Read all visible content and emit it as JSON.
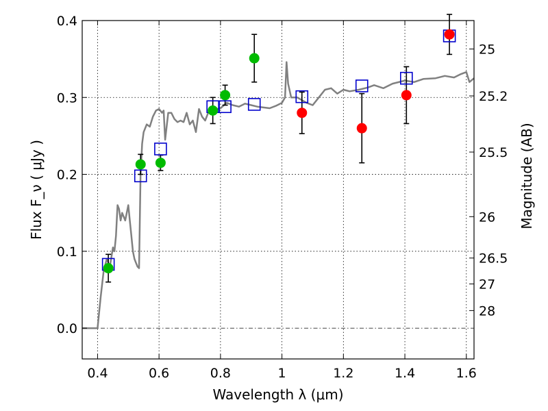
{
  "chart_data": {
    "type": "scatter",
    "title": "",
    "xlabel": "Wavelength  λ (μm)",
    "ylabel": "Flux  F_ν  ( μJy )",
    "y2label": "Magnitude (AB)",
    "xlim": [
      0.35,
      1.625
    ],
    "ylim": [
      -0.04,
      0.4
    ],
    "grid": true,
    "x_ticks": [
      0.4,
      0.6,
      0.8,
      1.0,
      1.2,
      1.4,
      1.6
    ],
    "x_tick_labels": [
      "0.4",
      "0.6",
      "0.8",
      "1",
      "1.2",
      "1.4",
      "1.6"
    ],
    "y_ticks": [
      0.0,
      0.1,
      0.2,
      0.3,
      0.4
    ],
    "y_tick_labels": [
      "0.0",
      "0.1",
      "0.2",
      "0.3",
      "0.4"
    ],
    "y2_ticks": [
      {
        "label": "25",
        "flux": 0.363
      },
      {
        "label": "25.2",
        "flux": 0.302
      },
      {
        "label": "25.5",
        "flux": 0.229
      },
      {
        "label": "26",
        "flux": 0.145
      },
      {
        "label": "26.5",
        "flux": 0.0912
      },
      {
        "label": "27",
        "flux": 0.0575
      },
      {
        "label": "28",
        "flux": 0.0229
      }
    ],
    "series": [
      {
        "name": "model_spectrum",
        "kind": "line",
        "color": "#808080",
        "x": [
          0.35,
          0.4,
          0.41,
          0.42,
          0.43,
          0.44,
          0.45,
          0.455,
          0.46,
          0.465,
          0.47,
          0.475,
          0.48,
          0.49,
          0.5,
          0.505,
          0.51,
          0.515,
          0.52,
          0.525,
          0.53,
          0.535,
          0.54,
          0.545,
          0.55,
          0.56,
          0.57,
          0.58,
          0.59,
          0.6,
          0.61,
          0.615,
          0.62,
          0.63,
          0.64,
          0.65,
          0.66,
          0.67,
          0.68,
          0.69,
          0.7,
          0.71,
          0.72,
          0.73,
          0.74,
          0.75,
          0.76,
          0.77,
          0.78,
          0.79,
          0.8,
          0.82,
          0.84,
          0.86,
          0.88,
          0.9,
          0.92,
          0.94,
          0.96,
          0.98,
          1.0,
          1.01,
          1.015,
          1.02,
          1.03,
          1.05,
          1.08,
          1.1,
          1.12,
          1.14,
          1.16,
          1.18,
          1.2,
          1.22,
          1.25,
          1.28,
          1.3,
          1.33,
          1.36,
          1.4,
          1.43,
          1.46,
          1.5,
          1.53,
          1.56,
          1.58,
          1.6,
          1.61,
          1.625
        ],
        "y": [
          0.0,
          0.0,
          0.04,
          0.075,
          0.09,
          0.08,
          0.105,
          0.1,
          0.12,
          0.16,
          0.155,
          0.14,
          0.15,
          0.14,
          0.16,
          0.14,
          0.12,
          0.1,
          0.09,
          0.085,
          0.08,
          0.078,
          0.2,
          0.24,
          0.255,
          0.265,
          0.262,
          0.275,
          0.283,
          0.285,
          0.28,
          0.283,
          0.245,
          0.28,
          0.28,
          0.272,
          0.268,
          0.27,
          0.268,
          0.28,
          0.265,
          0.27,
          0.255,
          0.285,
          0.275,
          0.27,
          0.28,
          0.283,
          0.284,
          0.285,
          0.286,
          0.293,
          0.29,
          0.288,
          0.292,
          0.29,
          0.288,
          0.287,
          0.286,
          0.289,
          0.293,
          0.3,
          0.346,
          0.318,
          0.3,
          0.3,
          0.293,
          0.29,
          0.3,
          0.31,
          0.312,
          0.305,
          0.31,
          0.308,
          0.31,
          0.313,
          0.316,
          0.312,
          0.318,
          0.322,
          0.32,
          0.324,
          0.325,
          0.328,
          0.326,
          0.33,
          0.333,
          0.32,
          0.325
        ]
      },
      {
        "name": "model_photometry",
        "kind": "open-square",
        "color": "#0000cc",
        "x": [
          0.435,
          0.54,
          0.605,
          0.775,
          0.815,
          0.91,
          1.065,
          1.26,
          1.405,
          1.545
        ],
        "y": [
          0.083,
          0.198,
          0.233,
          0.288,
          0.288,
          0.291,
          0.301,
          0.315,
          0.325,
          0.38
        ]
      },
      {
        "name": "observed_optical",
        "kind": "filled-circle",
        "color": "#00bb00",
        "x": [
          0.435,
          0.54,
          0.605,
          0.775,
          0.815,
          0.91
        ],
        "y": [
          0.078,
          0.213,
          0.215,
          0.283,
          0.303,
          0.351
        ],
        "err": [
          0.018,
          0.013,
          0.01,
          0.017,
          0.013,
          0.031
        ]
      },
      {
        "name": "observed_nir",
        "kind": "filled-circle",
        "color": "#ff0000",
        "x": [
          1.065,
          1.26,
          1.405,
          1.545
        ],
        "y": [
          0.28,
          0.26,
          0.303,
          0.382
        ],
        "err": [
          0.027,
          0.045,
          0.037,
          0.026
        ]
      }
    ]
  }
}
